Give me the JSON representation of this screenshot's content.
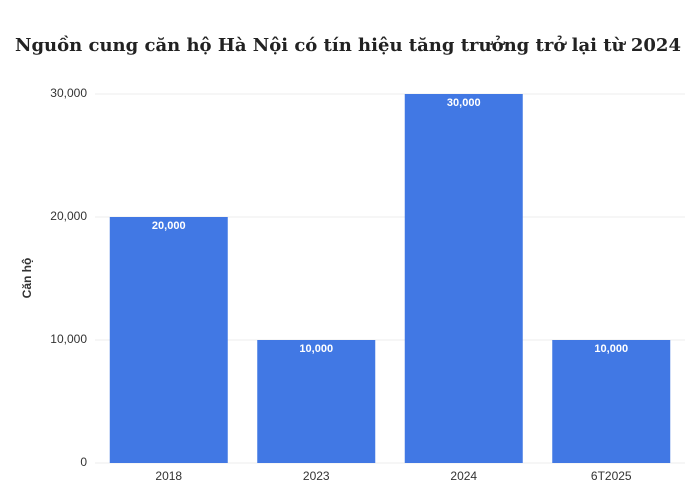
{
  "chart_data": {
    "type": "bar",
    "title": "Nguồn cung căn hộ Hà Nội có tín hiệu tăng trưởng trở lại từ 2024",
    "y_label": "Căn hộ",
    "categories": [
      "2018",
      "2023",
      "2024",
      "6T2025"
    ],
    "values": [
      20000,
      10000,
      30000,
      10000
    ],
    "value_labels": [
      "20,000",
      "10,000",
      "30,000",
      "10,000"
    ],
    "color": "#4178e4",
    "ylim": [
      0,
      30000
    ],
    "yticks": [
      0,
      {
        "value": 10000,
        "label": "10,000"
      },
      {
        "value": 20000,
        "label": "20,000"
      },
      {
        "value": 30000,
        "label": "30,000"
      }
    ],
    "grid": true
  }
}
